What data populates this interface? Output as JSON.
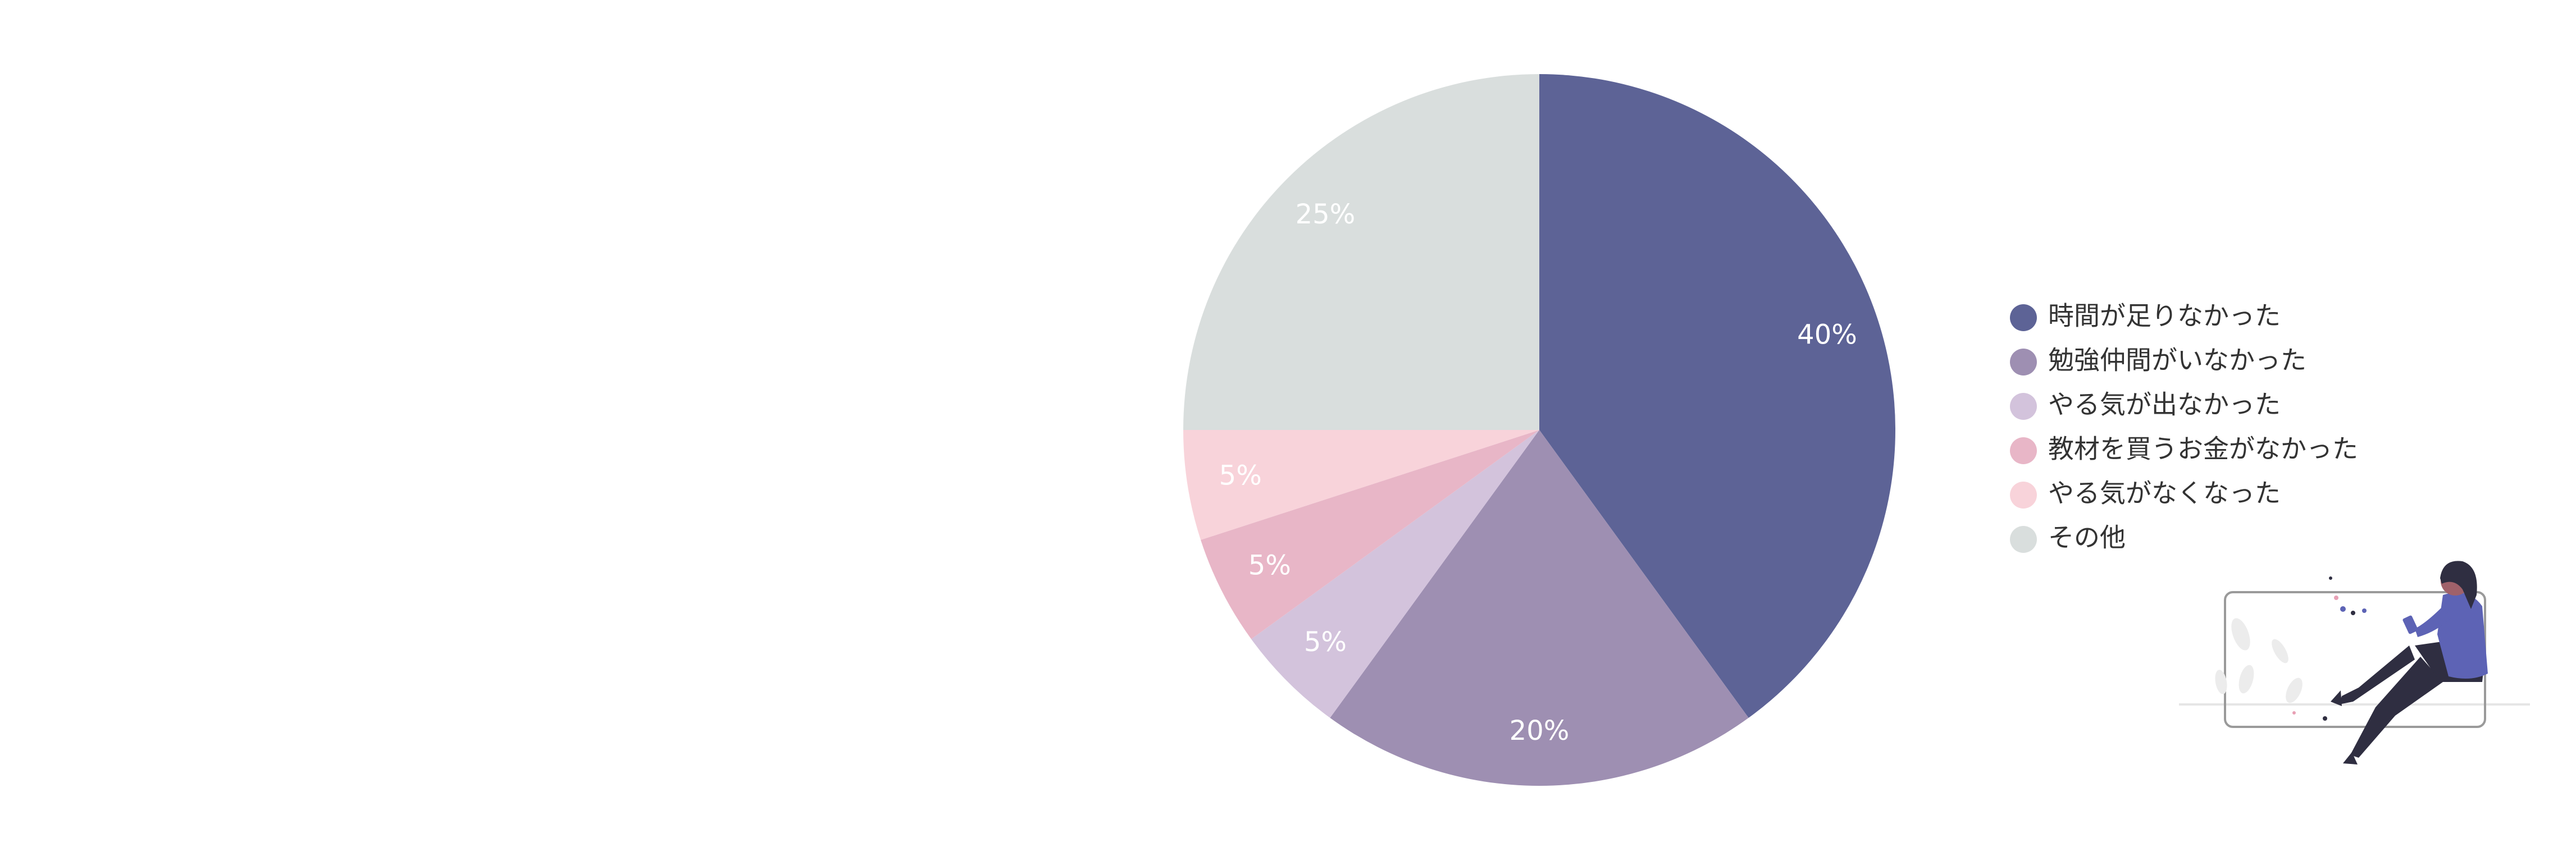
{
  "chart_data": {
    "type": "pie",
    "categories": [
      "時間が足りなかった",
      "勉強仲間がいなかった",
      "やる気が出なかった",
      "教材を買うお金がなかった",
      "やる気がなくなった",
      "その他"
    ],
    "values": [
      40,
      20,
      5,
      5,
      5,
      25
    ],
    "value_labels": [
      "40%",
      "20%",
      "5%",
      "5%",
      "5%",
      "25%"
    ],
    "colors": [
      "#5d6396",
      "#9e8fb2",
      "#d3c3dc",
      "#e8b6c7",
      "#f8d3da",
      "#d9dedd"
    ],
    "start_angle": "12 o'clock",
    "direction": "clockwise",
    "legend_position": "right"
  },
  "illustration": {
    "name": "person-sitting-with-phone-illustration",
    "colors": {
      "shirt": "#5d63b5",
      "pants": "#2f2e41",
      "skin": "#a0616a",
      "hair": "#2f2e41"
    }
  }
}
